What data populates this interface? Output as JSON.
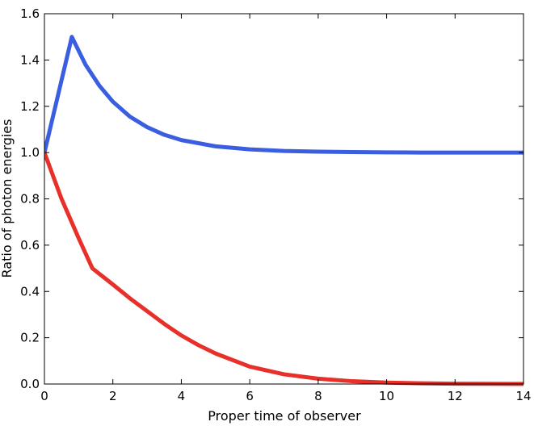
{
  "chart_data": {
    "type": "line",
    "title": "",
    "xlabel": "Proper time of observer",
    "ylabel": "Ratio of photon energies",
    "xlim": [
      0,
      14
    ],
    "ylim": [
      0,
      1.6
    ],
    "xticks": [
      0,
      2,
      4,
      6,
      8,
      10,
      12,
      14
    ],
    "xtick_labels": [
      "0",
      "2",
      "4",
      "6",
      "8",
      "10",
      "12",
      "14"
    ],
    "yticks": [
      0.0,
      0.2,
      0.4,
      0.6,
      0.8,
      1.0,
      1.2,
      1.4,
      1.6
    ],
    "ytick_labels": [
      "0.0",
      "0.2",
      "0.4",
      "0.6",
      "0.8",
      "1.0",
      "1.2",
      "1.4",
      "1.6"
    ],
    "grid": false,
    "legend": "none",
    "series": [
      {
        "color": "#3b5ee0",
        "x": [
          0,
          0.8,
          1.2,
          1.6,
          2,
          2.5,
          3,
          3.5,
          4,
          5,
          6,
          7,
          8,
          9,
          10,
          11,
          12,
          13,
          14
        ],
        "y": [
          1.0,
          1.5,
          1.38,
          1.29,
          1.22,
          1.155,
          1.11,
          1.077,
          1.054,
          1.027,
          1.014,
          1.007,
          1.004,
          1.002,
          1.001,
          1.0,
          1.0,
          1.0,
          1.0
        ]
      },
      {
        "color": "#e8302a",
        "x": [
          0,
          0.5,
          1.0,
          1.4,
          2,
          2.5,
          3,
          3.5,
          4,
          4.5,
          5,
          6,
          7,
          8,
          9,
          10,
          11,
          12,
          13,
          14
        ],
        "y": [
          1.0,
          0.8,
          0.63,
          0.5,
          0.43,
          0.37,
          0.315,
          0.26,
          0.21,
          0.168,
          0.132,
          0.075,
          0.042,
          0.023,
          0.012,
          0.006,
          0.003,
          0.0015,
          0.001,
          0.0005
        ]
      }
    ]
  }
}
